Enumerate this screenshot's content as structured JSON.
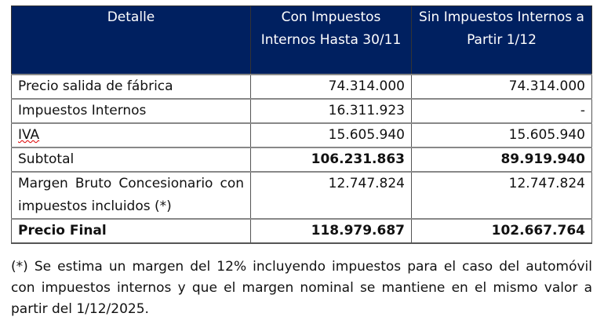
{
  "table": {
    "headers": [
      "Detalle",
      "Con Impuestos Internos Hasta 30/11",
      "Sin Impuestos Internos a Partir 1/12"
    ],
    "rows": [
      {
        "label": "Precio salida de fábrica",
        "con": "74.314.000",
        "sin": "74.314.000"
      },
      {
        "label": "Impuestos Internos",
        "con": "16.311.923",
        "sin": "-"
      },
      {
        "label": "IVA",
        "con": "15.605.940",
        "sin": "15.605.940"
      },
      {
        "label": "Subtotal",
        "con": "106.231.863",
        "sin": "89.919.940"
      },
      {
        "label": "Margen Bruto Concesionario con impuestos incluidos (*)",
        "con": "12.747.824",
        "sin": "12.747.824"
      },
      {
        "label": "Precio Final",
        "con": "118.979.687",
        "sin": "102.667.764"
      }
    ]
  },
  "note": "(*) Se estima un margen del 12% incluyendo impuestos para el caso del automóvil con impuestos internos y que el margen nominal se mantiene en el mismo valor a partir del 1/12/2025."
}
